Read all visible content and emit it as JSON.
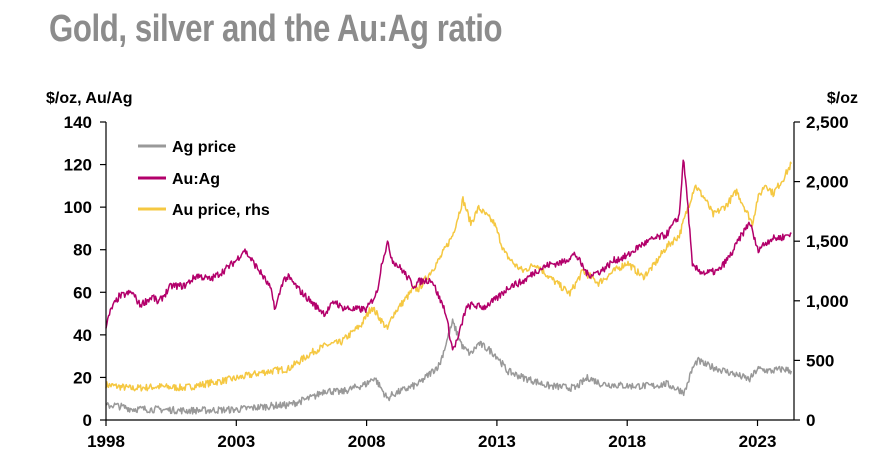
{
  "chart_data": {
    "type": "line",
    "title": "Gold, silver and the Au:Ag ratio",
    "ylabel_left": "$/oz, Au/Ag",
    "ylabel_right": "$/oz",
    "x_range": [
      1998,
      2024.4
    ],
    "x_ticks": [
      1998,
      2003,
      2008,
      2013,
      2018,
      2023
    ],
    "x_tick_labels": [
      "1998",
      "2003",
      "2008",
      "2013",
      "2018",
      "2023"
    ],
    "y_left_range": [
      0,
      140
    ],
    "y_left_ticks": [
      0,
      20,
      40,
      60,
      80,
      100,
      120,
      140
    ],
    "y_left_tick_labels": [
      "0",
      "20",
      "40",
      "60",
      "80",
      "100",
      "120",
      "140"
    ],
    "y_right_range": [
      0,
      2500
    ],
    "y_right_ticks": [
      0,
      500,
      1000,
      1500,
      2000,
      2500
    ],
    "y_right_tick_labels": [
      "0",
      "500",
      "1,000",
      "1,500",
      "2,000",
      "2,500"
    ],
    "legend_position": "top-left",
    "series": [
      {
        "name": "Ag price",
        "axis": "left",
        "color": "#999999",
        "points": [
          [
            1998.0,
            6.5
          ],
          [
            1998.3,
            7
          ],
          [
            1999.0,
            5.2
          ],
          [
            2000.0,
            5
          ],
          [
            2001.0,
            4.4
          ],
          [
            2002.0,
            4.6
          ],
          [
            2003.0,
            4.9
          ],
          [
            2004.0,
            6.2
          ],
          [
            2004.5,
            6.8
          ],
          [
            2005.0,
            7
          ],
          [
            2006.0,
            11
          ],
          [
            2006.4,
            14
          ],
          [
            2007.0,
            13
          ],
          [
            2008.0,
            17
          ],
          [
            2008.3,
            20
          ],
          [
            2008.8,
            10
          ],
          [
            2009.0,
            12
          ],
          [
            2010.0,
            17
          ],
          [
            2010.8,
            26
          ],
          [
            2011.3,
            46
          ],
          [
            2011.7,
            34
          ],
          [
            2012.0,
            31
          ],
          [
            2012.3,
            36
          ],
          [
            2012.7,
            33
          ],
          [
            2013.0,
            30
          ],
          [
            2013.4,
            23
          ],
          [
            2014.0,
            20
          ],
          [
            2015.0,
            16
          ],
          [
            2016.0,
            15
          ],
          [
            2016.5,
            20
          ],
          [
            2017.0,
            17
          ],
          [
            2018.0,
            16
          ],
          [
            2019.0,
            16
          ],
          [
            2019.5,
            17
          ],
          [
            2020.2,
            13
          ],
          [
            2020.5,
            24
          ],
          [
            2020.7,
            28
          ],
          [
            2021.0,
            26
          ],
          [
            2022.0,
            22
          ],
          [
            2022.7,
            19
          ],
          [
            2023.0,
            24
          ],
          [
            2023.5,
            23
          ],
          [
            2024.0,
            24
          ],
          [
            2024.3,
            23
          ]
        ]
      },
      {
        "name": "Au:Ag",
        "axis": "left",
        "color": "#b3006b",
        "points": [
          [
            1998.0,
            44
          ],
          [
            1998.2,
            52
          ],
          [
            1998.5,
            58
          ],
          [
            1999.0,
            60
          ],
          [
            1999.3,
            54
          ],
          [
            1999.8,
            58
          ],
          [
            2000.0,
            55
          ],
          [
            2000.5,
            63
          ],
          [
            2001.0,
            63
          ],
          [
            2001.5,
            68
          ],
          [
            2002.0,
            66
          ],
          [
            2002.5,
            70
          ],
          [
            2003.0,
            75
          ],
          [
            2003.3,
            80
          ],
          [
            2003.6,
            75
          ],
          [
            2004.0,
            68
          ],
          [
            2004.3,
            62
          ],
          [
            2004.5,
            52
          ],
          [
            2004.8,
            66
          ],
          [
            2005.0,
            67
          ],
          [
            2005.5,
            60
          ],
          [
            2006.0,
            54
          ],
          [
            2006.4,
            50
          ],
          [
            2006.8,
            56
          ],
          [
            2007.0,
            53
          ],
          [
            2007.5,
            52
          ],
          [
            2008.0,
            52
          ],
          [
            2008.4,
            60
          ],
          [
            2008.6,
            75
          ],
          [
            2008.8,
            83
          ],
          [
            2009.0,
            75
          ],
          [
            2009.4,
            70
          ],
          [
            2009.8,
            63
          ],
          [
            2010.0,
            65
          ],
          [
            2010.5,
            66
          ],
          [
            2010.8,
            57
          ],
          [
            2011.0,
            52
          ],
          [
            2011.3,
            33
          ],
          [
            2011.5,
            38
          ],
          [
            2011.8,
            52
          ],
          [
            2012.0,
            54
          ],
          [
            2012.5,
            53
          ],
          [
            2013.0,
            57
          ],
          [
            2013.5,
            63
          ],
          [
            2014.0,
            65
          ],
          [
            2014.5,
            70
          ],
          [
            2015.0,
            73
          ],
          [
            2015.5,
            74
          ],
          [
            2016.0,
            78
          ],
          [
            2016.5,
            68
          ],
          [
            2017.0,
            70
          ],
          [
            2017.5,
            75
          ],
          [
            2018.0,
            77
          ],
          [
            2018.5,
            82
          ],
          [
            2019.0,
            85
          ],
          [
            2019.5,
            87
          ],
          [
            2020.0,
            96
          ],
          [
            2020.15,
            123
          ],
          [
            2020.3,
            105
          ],
          [
            2020.5,
            72
          ],
          [
            2020.8,
            70
          ],
          [
            2021.0,
            69
          ],
          [
            2021.5,
            70
          ],
          [
            2022.0,
            78
          ],
          [
            2022.3,
            85
          ],
          [
            2022.7,
            93
          ],
          [
            2023.0,
            80
          ],
          [
            2023.5,
            85
          ],
          [
            2024.0,
            86
          ],
          [
            2024.3,
            88
          ]
        ]
      },
      {
        "name": "Au price, rhs",
        "axis": "right",
        "color": "#f5c842",
        "points": [
          [
            1998.0,
            295
          ],
          [
            1999.0,
            265
          ],
          [
            2000.0,
            280
          ],
          [
            2001.0,
            270
          ],
          [
            2002.0,
            310
          ],
          [
            2003.0,
            350
          ],
          [
            2004.0,
            400
          ],
          [
            2005.0,
            430
          ],
          [
            2006.0,
            580
          ],
          [
            2006.5,
            630
          ],
          [
            2007.0,
            650
          ],
          [
            2007.8,
            800
          ],
          [
            2008.2,
            950
          ],
          [
            2008.8,
            760
          ],
          [
            2009.0,
            880
          ],
          [
            2009.8,
            1100
          ],
          [
            2010.0,
            1100
          ],
          [
            2010.8,
            1350
          ],
          [
            2011.3,
            1550
          ],
          [
            2011.7,
            1850
          ],
          [
            2012.0,
            1650
          ],
          [
            2012.3,
            1780
          ],
          [
            2012.9,
            1650
          ],
          [
            2013.3,
            1400
          ],
          [
            2013.7,
            1300
          ],
          [
            2014.0,
            1250
          ],
          [
            2014.5,
            1310
          ],
          [
            2015.0,
            1200
          ],
          [
            2015.8,
            1060
          ],
          [
            2016.3,
            1250
          ],
          [
            2016.9,
            1150
          ],
          [
            2017.5,
            1250
          ],
          [
            2018.0,
            1320
          ],
          [
            2018.6,
            1200
          ],
          [
            2019.0,
            1290
          ],
          [
            2019.5,
            1450
          ],
          [
            2020.0,
            1550
          ],
          [
            2020.6,
            1970
          ],
          [
            2021.0,
            1850
          ],
          [
            2021.3,
            1720
          ],
          [
            2021.8,
            1800
          ],
          [
            2022.2,
            1920
          ],
          [
            2022.8,
            1650
          ],
          [
            2023.0,
            1850
          ],
          [
            2023.3,
            1980
          ],
          [
            2023.6,
            1900
          ],
          [
            2024.0,
            2030
          ],
          [
            2024.3,
            2150
          ]
        ]
      }
    ]
  }
}
